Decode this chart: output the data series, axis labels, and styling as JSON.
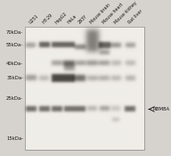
{
  "bg_color": "#d8d5d0",
  "blot_bg": "#e8e6e3",
  "fig_width": 1.92,
  "fig_height": 1.75,
  "dpi": 100,
  "lane_labels": [
    "U251",
    "HT-29",
    "HepG2",
    "HeLa",
    "293Y",
    "Mouse brain",
    "Mouse heart",
    "Mouse kidney",
    "Rat liver"
  ],
  "mw_labels": [
    "70kDa-",
    "55kDa-",
    "40kDa-",
    "35kDa-",
    "25kDa-",
    "15kDa-"
  ],
  "annotation": "RBM8A",
  "band_dark": "#1a1a1a",
  "band_mid": "#4a4a4a",
  "band_light": "#7a7a7a",
  "band_very_light": "#aaaaaa",
  "blot_white": "#f5f4f2"
}
